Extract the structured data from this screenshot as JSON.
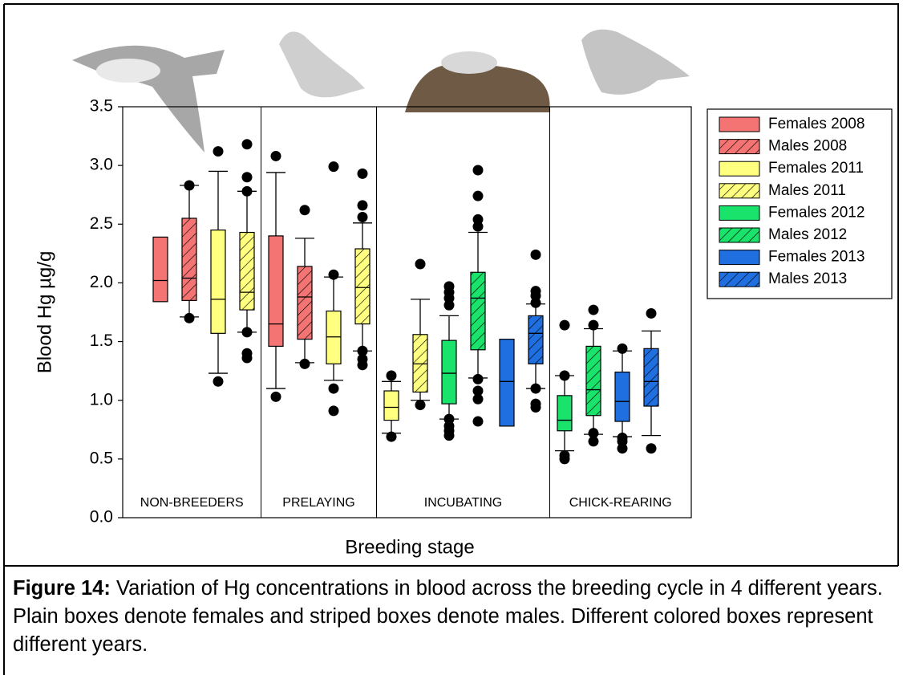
{
  "chart_data": {
    "type": "box",
    "ylabel": "Blood Hg µg/g",
    "xlabel": "Breeding stage",
    "ylim": [
      0,
      3.5
    ],
    "yticks": [
      {
        "value": 0,
        "label": "0.0"
      },
      0.5,
      {
        "value": 1,
        "label": "1.0"
      },
      1.5,
      {
        "value": 2,
        "label": "2.0"
      },
      2.5,
      {
        "value": 3,
        "label": "3.0"
      },
      3.5
    ],
    "categories": [
      "NON-BREEDERS",
      "PRELAYING",
      "INCUBATING",
      "CHICK-REARING"
    ],
    "series": [
      {
        "name": "Females 2008",
        "color": "#f47474",
        "hatched": false,
        "values": [
          {
            "whislo": 1.84,
            "q1": 1.84,
            "med": 2.02,
            "q3": 2.39,
            "whishi": 2.39,
            "fliers": []
          },
          {
            "whislo": 1.1,
            "q1": 1.46,
            "med": 1.65,
            "q3": 2.4,
            "whishi": 2.94,
            "fliers": [
              1.03,
              3.08
            ]
          },
          null,
          null
        ]
      },
      {
        "name": "Males 2008",
        "color": "#f47474",
        "hatched": true,
        "values": [
          {
            "whislo": 1.71,
            "q1": 1.85,
            "med": 2.04,
            "q3": 2.55,
            "whishi": 2.83,
            "fliers": [
              1.7,
              2.83
            ]
          },
          {
            "whislo": 1.32,
            "q1": 1.52,
            "med": 1.88,
            "q3": 2.14,
            "whishi": 2.38,
            "fliers": [
              1.31,
              2.62
            ]
          },
          null,
          null
        ]
      },
      {
        "name": "Females 2011",
        "color": "#ffff80",
        "hatched": false,
        "values": [
          {
            "whislo": 1.23,
            "q1": 1.57,
            "med": 1.86,
            "q3": 2.45,
            "whishi": 2.95,
            "fliers": [
              1.16,
              3.12
            ]
          },
          {
            "whislo": 1.17,
            "q1": 1.31,
            "med": 1.54,
            "q3": 1.76,
            "whishi": 2.05,
            "fliers": [
              0.91,
              1.1,
              2.07,
              2.99
            ]
          },
          {
            "whislo": 0.72,
            "q1": 0.83,
            "med": 0.94,
            "q3": 1.08,
            "whishi": 1.16,
            "fliers": [
              0.69,
              1.21
            ]
          },
          null
        ]
      },
      {
        "name": "Males 2011",
        "color": "#ffff80",
        "hatched": true,
        "values": [
          {
            "whislo": 1.58,
            "q1": 1.77,
            "med": 1.92,
            "q3": 2.43,
            "whishi": 2.78,
            "fliers": [
              1.36,
              1.4,
              1.58,
              2.78,
              2.9,
              3.18
            ]
          },
          {
            "whislo": 1.42,
            "q1": 1.65,
            "med": 1.96,
            "q3": 2.29,
            "whishi": 2.51,
            "fliers": [
              1.3,
              1.35,
              1.42,
              2.56,
              2.66,
              2.93
            ]
          },
          {
            "whislo": 1.0,
            "q1": 1.07,
            "med": 1.31,
            "q3": 1.56,
            "whishi": 1.86,
            "fliers": [
              0.96,
              2.16
            ]
          },
          null
        ]
      },
      {
        "name": "Females 2012",
        "color": "#19e36b",
        "hatched": false,
        "values": [
          null,
          null,
          {
            "whislo": 0.84,
            "q1": 0.97,
            "med": 1.23,
            "q3": 1.51,
            "whishi": 1.72,
            "fliers": [
              0.7,
              0.74,
              0.78,
              0.84,
              1.81,
              1.87,
              1.92,
              1.97
            ]
          },
          {
            "whislo": 0.57,
            "q1": 0.74,
            "med": 0.83,
            "q3": 1.04,
            "whishi": 1.21,
            "fliers": [
              0.5,
              0.53,
              1.21,
              1.64
            ]
          }
        ]
      },
      {
        "name": "Males 2012",
        "color": "#19e36b",
        "hatched": true,
        "values": [
          null,
          null,
          {
            "whislo": 1.19,
            "q1": 1.43,
            "med": 1.87,
            "q3": 2.09,
            "whishi": 2.43,
            "fliers": [
              0.82,
              1.01,
              1.08,
              1.18,
              2.48,
              2.54,
              2.74,
              2.96
            ]
          },
          {
            "whislo": 0.71,
            "q1": 0.87,
            "med": 1.09,
            "q3": 1.46,
            "whishi": 1.61,
            "fliers": [
              0.65,
              0.72,
              1.64,
              1.77
            ]
          }
        ]
      },
      {
        "name": "Females 2013",
        "color": "#1f6fe0",
        "hatched": false,
        "values": [
          null,
          null,
          {
            "whislo": 0.78,
            "q1": 0.78,
            "med": 1.16,
            "q3": 1.52,
            "whishi": 1.52,
            "fliers": []
          },
          {
            "whislo": 0.69,
            "q1": 0.82,
            "med": 0.99,
            "q3": 1.24,
            "whishi": 1.42,
            "fliers": [
              0.59,
              0.65,
              0.68,
              1.44
            ]
          }
        ]
      },
      {
        "name": "Males 2013",
        "color": "#1f6fe0",
        "hatched": true,
        "values": [
          null,
          null,
          {
            "whislo": 1.1,
            "q1": 1.31,
            "med": 1.57,
            "q3": 1.72,
            "whishi": 1.82,
            "fliers": [
              0.94,
              0.97,
              1.1,
              1.83,
              1.89,
              1.93,
              2.24
            ]
          },
          {
            "whislo": 0.7,
            "q1": 0.95,
            "med": 1.16,
            "q3": 1.44,
            "whishi": 1.59,
            "fliers": [
              0.59,
              1.74
            ]
          }
        ]
      }
    ]
  },
  "caption": {
    "label": "Figure 14:",
    "text": "Variation of Hg concentrations in blood across the breeding cycle in 4 different years. Plain boxes denote females and striped boxes denote males. Different colored boxes represent different years."
  }
}
